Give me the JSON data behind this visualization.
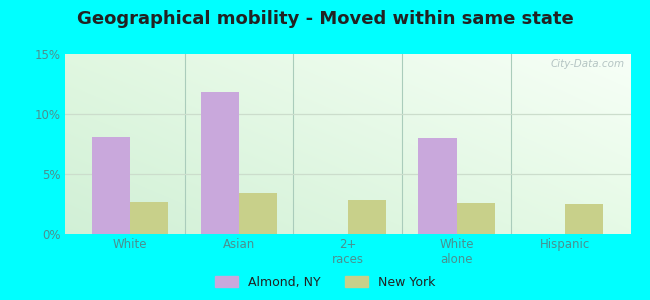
{
  "title": "Geographical mobility - Moved within same state",
  "categories": [
    "White",
    "Asian",
    "2+\nraces",
    "White\nalone",
    "Hispanic"
  ],
  "almond_values": [
    8.1,
    11.8,
    0,
    8.0,
    0
  ],
  "newyork_values": [
    2.7,
    3.4,
    2.8,
    2.6,
    2.5
  ],
  "almond_color": "#c9a8dc",
  "newyork_color": "#c8d08a",
  "bar_width": 0.35,
  "ylim": [
    0,
    15
  ],
  "yticks": [
    0,
    5,
    10,
    15
  ],
  "ytick_labels": [
    "0%",
    "5%",
    "10%",
    "15%"
  ],
  "bg_outer": "#00FFFF",
  "title_fontsize": 13,
  "title_color": "#222222",
  "watermark": "City-Data.com",
  "legend_labels": [
    "Almond, NY",
    "New York"
  ],
  "tick_color": "#4a9090",
  "separator_color": "#aaccbb",
  "grid_color": "#ccddcc"
}
